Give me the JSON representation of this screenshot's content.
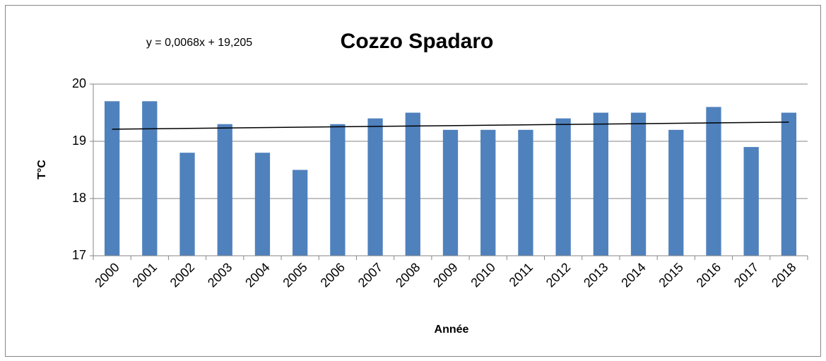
{
  "chart_data": {
    "type": "bar",
    "title": "Cozzo Spadaro",
    "annotations": [
      "y = 0,0068x + 19,205"
    ],
    "xlabel": "Année",
    "ylabel": "T°C",
    "categories": [
      "2000",
      "2001",
      "2002",
      "2003",
      "2004",
      "2005",
      "2006",
      "2007",
      "2008",
      "2009",
      "2010",
      "2011",
      "2012",
      "2013",
      "2014",
      "2015",
      "2016",
      "2017",
      "2018"
    ],
    "values": [
      19.7,
      19.7,
      18.8,
      19.3,
      18.8,
      18.5,
      19.3,
      19.4,
      19.5,
      19.2,
      19.2,
      19.2,
      19.4,
      19.5,
      19.5,
      19.2,
      19.6,
      18.9,
      19.5
    ],
    "color": "#4f81bd",
    "trendline": true,
    "ylim": [
      17,
      20
    ],
    "yticks": [
      17,
      18,
      19,
      20
    ],
    "grid": true
  }
}
